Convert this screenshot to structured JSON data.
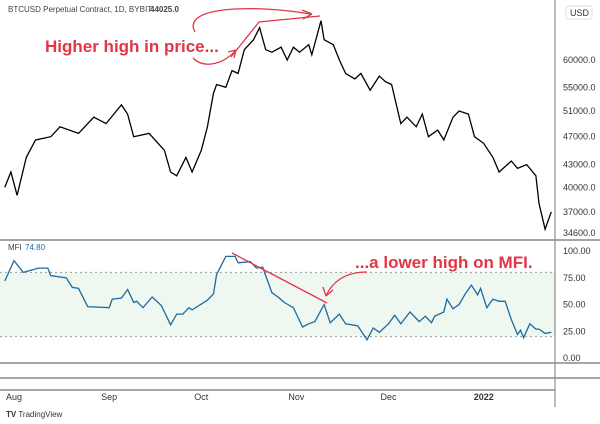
{
  "header": {
    "title": "BTCUSD Perpetual Contract, 1D, BYBIT",
    "last_price": "44025.0",
    "currency_badge": "USD"
  },
  "mfi_legend": {
    "name": "MFI",
    "value": "74.80"
  },
  "annotations": {
    "price": "Higher high in price...",
    "mfi": "...a lower high on MFI."
  },
  "footer": {
    "brand": "TradingView"
  },
  "colors": {
    "price": "#000000",
    "mfi": "#1f6aa0",
    "annotation": "#e33545",
    "band": "#eef8f0"
  },
  "chart_data": [
    {
      "type": "line",
      "title": "BTCUSD Perpetual Contract, 1D, BYBIT",
      "scale": "log",
      "y_ticks": [
        "60000.0",
        "55000.0",
        "51000.0",
        "47000.0",
        "43000.0",
        "40000.0",
        "37000.0",
        "34600.0"
      ],
      "y_tick_values": [
        60000,
        55000,
        51000,
        47000,
        43000,
        40000,
        37000,
        34600
      ],
      "x_unit": "days since Aug 1 2021",
      "series": [
        {
          "name": "BTCUSD",
          "points": [
            [
              -3,
              40000
            ],
            [
              -1,
              42000
            ],
            [
              1,
              39000
            ],
            [
              4,
              44000
            ],
            [
              7,
              46500
            ],
            [
              12,
              47000
            ],
            [
              15,
              48500
            ],
            [
              21,
              47500
            ],
            [
              26,
              50000
            ],
            [
              30,
              49000
            ],
            [
              35,
              52000
            ],
            [
              37,
              50500
            ],
            [
              39,
              47000
            ],
            [
              44,
              47500
            ],
            [
              49,
              45000
            ],
            [
              51,
              42000
            ],
            [
              53,
              41500
            ],
            [
              56,
              44000
            ],
            [
              58,
              42000
            ],
            [
              61,
              45000
            ],
            [
              63,
              48500
            ],
            [
              65,
              54000
            ],
            [
              66,
              55500
            ],
            [
              69,
              55000
            ],
            [
              71,
              58000
            ],
            [
              73,
              57500
            ],
            [
              75,
              62000
            ],
            [
              78,
              64000
            ],
            [
              80,
              66500
            ],
            [
              82,
              62000
            ],
            [
              84,
              61500
            ],
            [
              87,
              62500
            ],
            [
              89,
              60000
            ],
            [
              91,
              62500
            ],
            [
              93,
              61500
            ],
            [
              96,
              63000
            ],
            [
              97,
              61000
            ],
            [
              100,
              68000
            ],
            [
              101,
              64000
            ],
            [
              104,
              63000
            ],
            [
              106,
              60000
            ],
            [
              108,
              57500
            ],
            [
              111,
              56500
            ],
            [
              113,
              57500
            ],
            [
              116,
              54500
            ],
            [
              119,
              57000
            ],
            [
              121,
              56000
            ],
            [
              123,
              55500
            ],
            [
              126,
              49000
            ],
            [
              128,
              50000
            ],
            [
              131,
              48500
            ],
            [
              133,
              50500
            ],
            [
              135,
              47000
            ],
            [
              138,
              48000
            ],
            [
              140,
              46500
            ],
            [
              143,
              50000
            ],
            [
              145,
              51000
            ],
            [
              148,
              50500
            ],
            [
              150,
              47000
            ],
            [
              153,
              46000
            ],
            [
              156,
              44000
            ],
            [
              158,
              42000
            ],
            [
              162,
              43500
            ],
            [
              164,
              42500
            ],
            [
              167,
              43000
            ],
            [
              170,
              41500
            ],
            [
              171,
              38000
            ],
            [
              173,
              35000
            ],
            [
              175,
              37000
            ]
          ]
        }
      ]
    },
    {
      "type": "line",
      "title": "MFI",
      "ylim": [
        0,
        100
      ],
      "bands": [
        20,
        80
      ],
      "y_ticks": [
        "100.00",
        "75.00",
        "50.00",
        "25.00",
        "0.00"
      ],
      "y_tick_values": [
        100,
        75,
        50,
        25,
        0
      ],
      "x_ticks": [
        "Aug",
        "Sep",
        "Oct",
        "Nov",
        "Dec",
        "2022"
      ],
      "x_tick_days": [
        0,
        31,
        61,
        92,
        122,
        153
      ],
      "series": [
        {
          "name": "MFI",
          "points": [
            [
              -3,
              72
            ],
            [
              0,
              91
            ],
            [
              3,
              80
            ],
            [
              8,
              84
            ],
            [
              11,
              84
            ],
            [
              12,
              77
            ],
            [
              17,
              75
            ],
            [
              19,
              66
            ],
            [
              21,
              65
            ],
            [
              24,
              48
            ],
            [
              31,
              47
            ],
            [
              32,
              55
            ],
            [
              35,
              56
            ],
            [
              37,
              64
            ],
            [
              39,
              52
            ],
            [
              40,
              53
            ],
            [
              42,
              47
            ],
            [
              45,
              57
            ],
            [
              48,
              49
            ],
            [
              51,
              31
            ],
            [
              53,
              41
            ],
            [
              55,
              41
            ],
            [
              57,
              47
            ],
            [
              58,
              45
            ],
            [
              63,
              54
            ],
            [
              65,
              60
            ],
            [
              66,
              78
            ],
            [
              69,
              95
            ],
            [
              72,
              95
            ],
            [
              73,
              89
            ],
            [
              77,
              90
            ],
            [
              79,
              84
            ],
            [
              81,
              85
            ],
            [
              82,
              77
            ],
            [
              84,
              61
            ],
            [
              86,
              57
            ],
            [
              88,
              52
            ],
            [
              91,
              47
            ],
            [
              94,
              29
            ],
            [
              96,
              32
            ],
            [
              98,
              34
            ],
            [
              101,
              50
            ],
            [
              103,
              33
            ],
            [
              106,
              41
            ],
            [
              108,
              32
            ],
            [
              112,
              30
            ],
            [
              115,
              17
            ],
            [
              117,
              28
            ],
            [
              119,
              24
            ],
            [
              122,
              32
            ],
            [
              124,
              40
            ],
            [
              126,
              32
            ],
            [
              129,
              43
            ],
            [
              132,
              34
            ],
            [
              134,
              39
            ],
            [
              136,
              33
            ],
            [
              137,
              39
            ],
            [
              140,
              43
            ],
            [
              141,
              55
            ],
            [
              143,
              46
            ],
            [
              145,
              50
            ],
            [
              147,
              60
            ],
            [
              149,
              68
            ],
            [
              151,
              59
            ],
            [
              152,
              65
            ],
            [
              154,
              47
            ],
            [
              156,
              55
            ],
            [
              158,
              53
            ],
            [
              160,
              53
            ],
            [
              162,
              36
            ],
            [
              164,
              22
            ],
            [
              165,
              26
            ],
            [
              166,
              19
            ],
            [
              168,
              32
            ],
            [
              170,
              27
            ],
            [
              171,
              27
            ],
            [
              173,
              23
            ],
            [
              175,
              24
            ]
          ]
        }
      ]
    }
  ]
}
